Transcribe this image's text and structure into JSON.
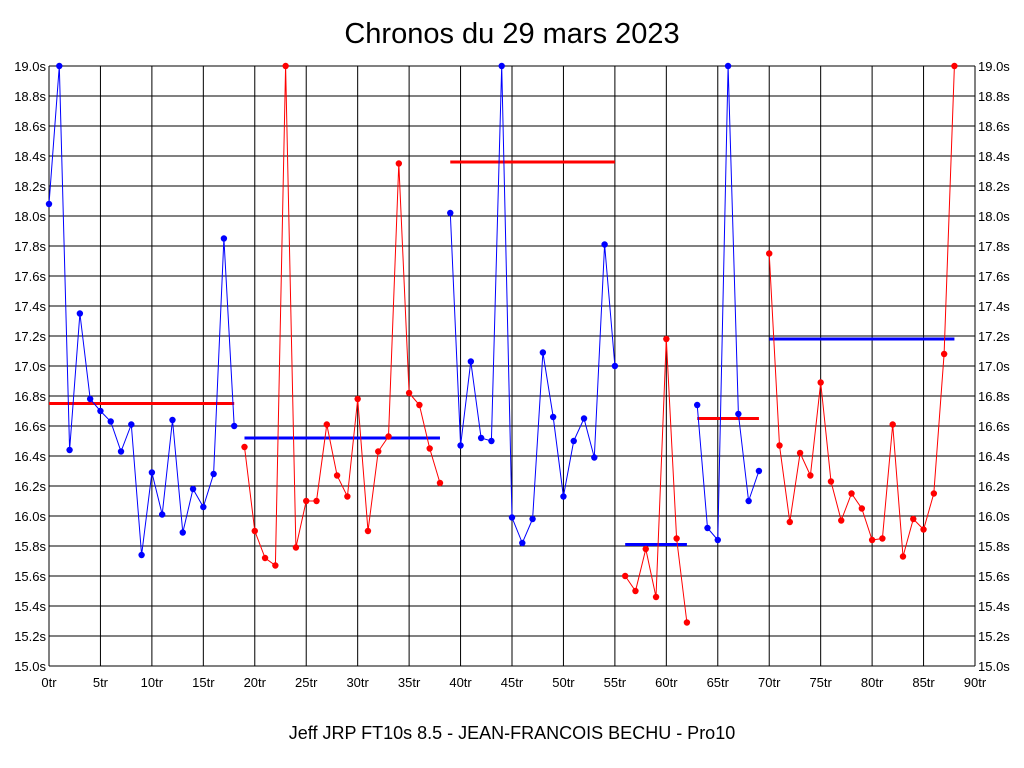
{
  "chart_data": {
    "type": "line",
    "title": "Chronos du 29 mars 2023",
    "footer": "Jeff JRP FT10s 8.5 - JEAN-FRANCOIS BECHU - Pro10",
    "xlim": [
      0,
      90
    ],
    "ylim": [
      15.0,
      19.0
    ],
    "x_tick_labels": [
      "0tr",
      "5tr",
      "10tr",
      "15tr",
      "20tr",
      "25tr",
      "30tr",
      "35tr",
      "40tr",
      "45tr",
      "50tr",
      "55tr",
      "60tr",
      "65tr",
      "70tr",
      "75tr",
      "80tr",
      "85tr",
      "90tr"
    ],
    "y_tick_labels": [
      "15.0s",
      "15.2s",
      "15.4s",
      "15.6s",
      "15.8s",
      "16.0s",
      "16.2s",
      "16.4s",
      "16.6s",
      "16.8s",
      "17.0s",
      "17.2s",
      "17.4s",
      "17.6s",
      "17.8s",
      "18.0s",
      "18.2s",
      "18.4s",
      "18.6s",
      "18.8s",
      "19.0s"
    ],
    "grid": true,
    "colors": {
      "blue": "#0000ff",
      "red": "#ff0000"
    },
    "series": [
      {
        "color": "#0000ff",
        "x": [
          0,
          1,
          2,
          3,
          4,
          5,
          6,
          7,
          8,
          9,
          10,
          11,
          12,
          13,
          14,
          15,
          16,
          17,
          18
        ],
        "y": [
          18.08,
          19.0,
          16.44,
          17.35,
          16.78,
          16.7,
          16.63,
          16.43,
          16.61,
          15.74,
          16.29,
          16.01,
          16.64,
          15.89,
          16.18,
          16.06,
          16.28,
          17.85,
          16.6
        ]
      },
      {
        "color": "#ff0000",
        "x": [
          19,
          20,
          21,
          22,
          23,
          24,
          25,
          26,
          27,
          28,
          29,
          30,
          31,
          32,
          33,
          34,
          35,
          36,
          37,
          38
        ],
        "y": [
          16.46,
          15.9,
          15.72,
          15.67,
          19.0,
          15.79,
          16.1,
          16.1,
          16.61,
          16.27,
          16.13,
          16.78,
          15.9,
          16.43,
          16.53,
          18.35,
          16.82,
          16.74,
          16.45,
          16.22
        ]
      },
      {
        "color": "#0000ff",
        "x": [
          39,
          40,
          41,
          42,
          43,
          44,
          45,
          46,
          47,
          48,
          49,
          50,
          51,
          52,
          53,
          54,
          55
        ],
        "y": [
          18.02,
          16.47,
          17.03,
          16.52,
          16.5,
          19.0,
          15.99,
          15.82,
          15.98,
          17.09,
          16.66,
          16.13,
          16.5,
          16.65,
          16.39,
          17.81,
          17.0
        ]
      },
      {
        "color": "#ff0000",
        "x": [
          56,
          57,
          58,
          59,
          60,
          61,
          62
        ],
        "y": [
          15.6,
          15.5,
          15.78,
          15.46,
          17.18,
          15.85,
          15.29
        ]
      },
      {
        "color": "#0000ff",
        "x": [
          63,
          64,
          65,
          66,
          67,
          68,
          69
        ],
        "y": [
          16.74,
          15.92,
          15.84,
          19.0,
          16.68,
          16.1,
          16.3
        ]
      },
      {
        "color": "#ff0000",
        "x": [
          70,
          71,
          72,
          73,
          74,
          75,
          76,
          77,
          78,
          79,
          80,
          81,
          82,
          83,
          84,
          85,
          86,
          87,
          88
        ],
        "y": [
          17.75,
          16.47,
          15.96,
          16.42,
          16.27,
          16.89,
          16.23,
          15.97,
          16.15,
          16.05,
          15.84,
          15.85,
          16.61,
          15.73,
          15.98,
          15.91,
          16.15,
          17.08,
          19.0
        ]
      }
    ],
    "averages": [
      {
        "color": "#ff0000",
        "x": [
          0,
          18
        ],
        "y": 16.75
      },
      {
        "color": "#0000ff",
        "x": [
          19,
          38
        ],
        "y": 16.52
      },
      {
        "color": "#ff0000",
        "x": [
          39,
          55
        ],
        "y": 18.36
      },
      {
        "color": "#0000ff",
        "x": [
          56,
          62
        ],
        "y": 15.81
      },
      {
        "color": "#ff0000",
        "x": [
          63,
          69
        ],
        "y": 16.65
      },
      {
        "color": "#0000ff",
        "x": [
          70,
          88
        ],
        "y": 17.18
      }
    ]
  }
}
